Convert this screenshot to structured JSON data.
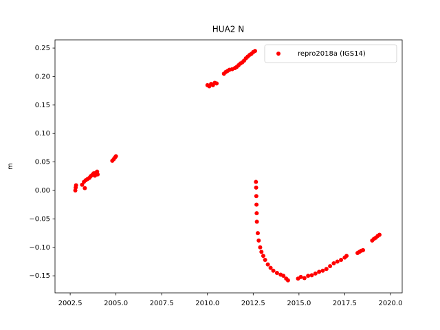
{
  "chart_data": {
    "type": "scatter",
    "title": "HUA2 N",
    "y_label": "m",
    "xlim": [
      2001.67,
      2020.64
    ],
    "ylim": [
      -0.18,
      0.2645
    ],
    "xticks": [
      2002.5,
      {
        "value": 2005,
        "label": "2005.0"
      },
      2007.5,
      {
        "value": 2010,
        "label": "2010.0"
      },
      2012.5,
      {
        "value": 2015,
        "label": "2015.0"
      },
      2017.5,
      {
        "value": 2020,
        "label": "2020.0"
      }
    ],
    "yticks": [
      {
        "value": -0.15,
        "label": "−0.15"
      },
      {
        "value": -0.1,
        "label": "−0.10"
      },
      {
        "value": -0.05,
        "label": "−0.05"
      },
      {
        "value": 0,
        "label": "0.00"
      },
      0.05,
      {
        "value": 0.1,
        "label": "0.10"
      },
      0.15,
      {
        "value": 0.2,
        "label": "0.20"
      },
      0.25
    ],
    "legend_position": "upper right",
    "series": [
      {
        "name": "repro2018a (IGS14)",
        "color": "#ff0000",
        "x": [
          2002.78,
          2002.8,
          2002.82,
          2003.15,
          2003.25,
          2003.3,
          2003.35,
          2003.45,
          2003.55,
          2003.62,
          2003.7,
          2003.78,
          2003.85,
          2003.9,
          2003.97,
          2004.0,
          2004.8,
          2004.88,
          2004.95,
          2005.0,
          2010.0,
          2010.1,
          2010.2,
          2010.3,
          2010.4,
          2010.5,
          2010.9,
          2011.0,
          2011.1,
          2011.2,
          2011.35,
          2011.5,
          2011.6,
          2011.7,
          2011.8,
          2011.9,
          2012.0,
          2012.1,
          2012.2,
          2012.3,
          2012.4,
          2012.5,
          2012.6,
          2012.65,
          2012.66,
          2012.67,
          2012.68,
          2012.69,
          2012.7,
          2012.75,
          2012.8,
          2012.88,
          2012.95,
          2013.05,
          2013.15,
          2013.3,
          2013.45,
          2013.6,
          2013.8,
          2014.0,
          2014.15,
          2014.3,
          2014.4,
          2014.95,
          2015.1,
          2015.3,
          2015.5,
          2015.7,
          2015.9,
          2016.1,
          2016.3,
          2016.5,
          2016.7,
          2016.9,
          2017.1,
          2017.3,
          2017.5,
          2017.6,
          2018.2,
          2018.3,
          2018.4,
          2018.5,
          2019.0,
          2019.1,
          2019.2,
          2019.3,
          2019.4
        ],
        "values": [
          0.0,
          0.005,
          0.009,
          0.01,
          0.015,
          0.004,
          0.018,
          0.02,
          0.022,
          0.025,
          0.027,
          0.03,
          0.026,
          0.031,
          0.033,
          0.028,
          0.052,
          0.055,
          0.058,
          0.06,
          0.185,
          0.183,
          0.187,
          0.185,
          0.189,
          0.188,
          0.205,
          0.208,
          0.21,
          0.212,
          0.213,
          0.215,
          0.217,
          0.22,
          0.223,
          0.225,
          0.228,
          0.232,
          0.235,
          0.238,
          0.24,
          0.243,
          0.245,
          0.015,
          0.005,
          -0.01,
          -0.025,
          -0.04,
          -0.055,
          -0.075,
          -0.088,
          -0.1,
          -0.108,
          -0.115,
          -0.122,
          -0.13,
          -0.136,
          -0.141,
          -0.145,
          -0.148,
          -0.15,
          -0.155,
          -0.158,
          -0.155,
          -0.152,
          -0.154,
          -0.15,
          -0.149,
          -0.146,
          -0.143,
          -0.141,
          -0.138,
          -0.133,
          -0.128,
          -0.125,
          -0.122,
          -0.118,
          -0.115,
          -0.11,
          -0.108,
          -0.106,
          -0.105,
          -0.088,
          -0.085,
          -0.083,
          -0.08,
          -0.078
        ]
      }
    ]
  }
}
